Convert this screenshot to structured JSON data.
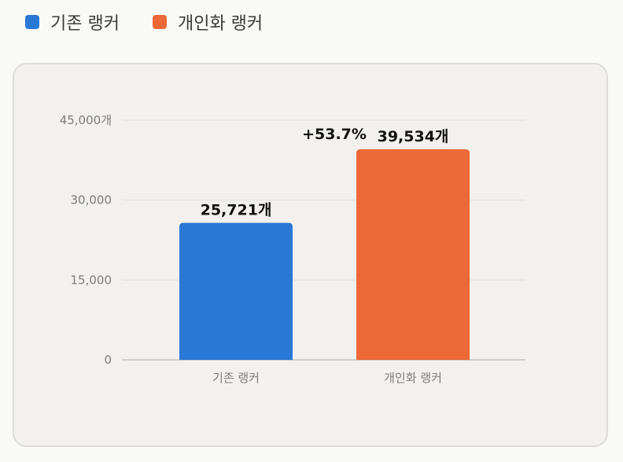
{
  "legend": [
    {
      "label": "기존 랭커",
      "color": "#2a78d6"
    },
    {
      "label": "개인화 랭커",
      "color": "#ec6836"
    }
  ],
  "chart_data": {
    "type": "bar",
    "categories": [
      "기존 랭커",
      "개인화 랭커"
    ],
    "values": [
      25721,
      39534
    ],
    "colors": [
      "#2a78d6",
      "#ec6836"
    ],
    "data_labels": [
      "25,721개",
      "39,534개"
    ],
    "annotation": "+53.7%",
    "yticks": [
      {
        "value": 0,
        "label": "0"
      },
      {
        "value": 15000,
        "label": "15,000"
      },
      {
        "value": 30000,
        "label": "30,000"
      },
      {
        "value": 45000,
        "label": "45,000개"
      }
    ],
    "ylim": [
      0,
      45000
    ],
    "grid": true,
    "legend_position": "top-left"
  }
}
